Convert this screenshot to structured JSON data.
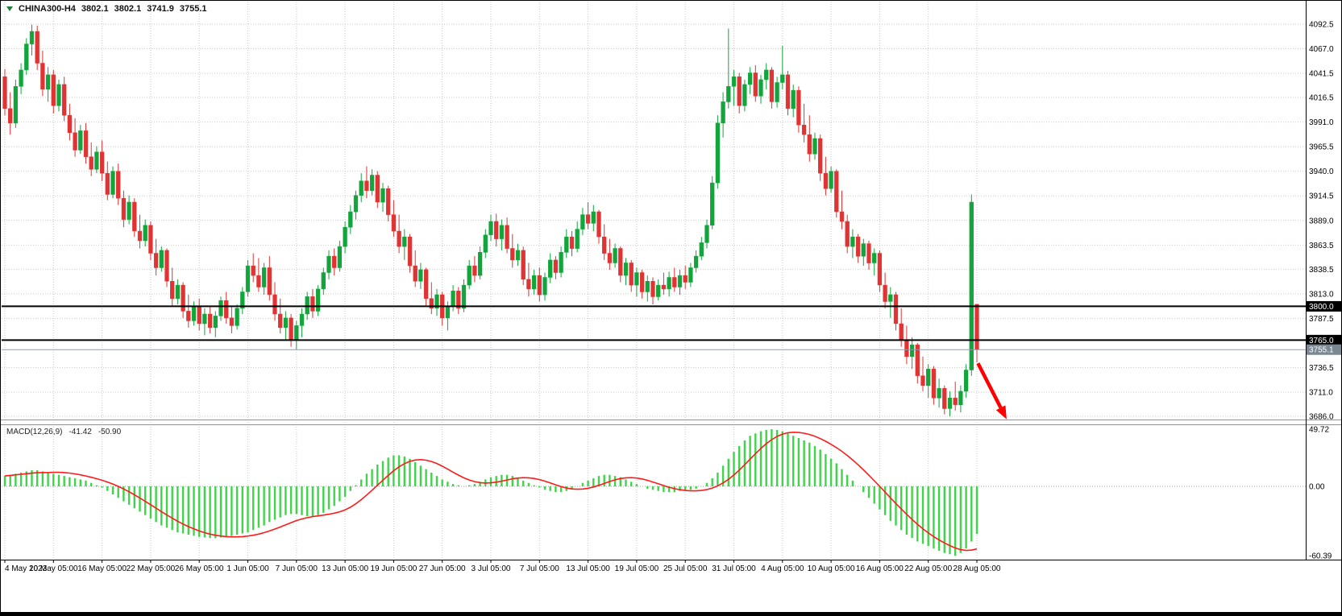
{
  "header": {
    "symbol": "CHINA300-H4",
    "open": "3802.1",
    "high": "3802.1",
    "low": "3741.9",
    "close": "3755.1"
  },
  "macd_label": {
    "name": "MACD(12,26,9)",
    "macd_value": "-41.42",
    "signal_value": "-50.90"
  },
  "colors": {
    "bull": "#13a53c",
    "bear": "#e03434",
    "macd_bar": "#3fd44a",
    "signal": "#ff1a1a",
    "grid": "#c9c9c9",
    "level_line": "#000000",
    "tag_bg": "#000000",
    "current_tag_bg": "#7c8794",
    "axis_text": "#000000",
    "arrow": "#ff0000"
  },
  "chart_data": {
    "type": "candlestick",
    "title": "CHINA300-H4",
    "timeframe": "H4",
    "label_every_n_candles": 9,
    "x_labels": [
      "4 May 2023",
      "10 May 05:00",
      "16 May 05:00",
      "22 May 05:00",
      "26 May 05:00",
      "1 Jun 05:00",
      "7 Jun 05:00",
      "13 Jun 05:00",
      "19 Jun 05:00",
      "27 Jun 05:00",
      "3 Jul 05:00",
      "7 Jul 05:00",
      "13 Jul 05:00",
      "19 Jul 05:00",
      "25 Jul 05:00",
      "31 Jul 05:00",
      "4 Aug 05:00",
      "10 Aug 05:00",
      "16 Aug 05:00",
      "22 Aug 05:00",
      "28 Aug 05:00"
    ],
    "price_axis": {
      "min": 3686.0,
      "max": 4092.5,
      "ticks": [
        4092.5,
        4067.0,
        4041.5,
        4016.5,
        3991.0,
        3965.5,
        3940.0,
        3914.5,
        3889.0,
        3863.5,
        3838.5,
        3813.0,
        3787.5,
        3736.5,
        3711.0,
        3686.0
      ],
      "levels": [
        {
          "value": 3800.0,
          "label": "3800.0"
        },
        {
          "value": 3765.0,
          "label": "3765.0"
        }
      ],
      "current": {
        "value": 3755.1,
        "label": "3755.1"
      }
    },
    "candles": [
      [
        4038,
        4046,
        3998,
        4005
      ],
      [
        4005,
        4022,
        3978,
        3990
      ],
      [
        3990,
        4035,
        3985,
        4028
      ],
      [
        4028,
        4052,
        4020,
        4045
      ],
      [
        4045,
        4078,
        4040,
        4072
      ],
      [
        4072,
        4092,
        4060,
        4085
      ],
      [
        4085,
        4091,
        4045,
        4052
      ],
      [
        4052,
        4065,
        4018,
        4025
      ],
      [
        4025,
        4048,
        4012,
        4040
      ],
      [
        4040,
        4045,
        4000,
        4008
      ],
      [
        4008,
        4035,
        4002,
        4030
      ],
      [
        4030,
        4038,
        3992,
        3998
      ],
      [
        3998,
        4010,
        3972,
        3980
      ],
      [
        3980,
        3995,
        3955,
        3962
      ],
      [
        3962,
        3988,
        3958,
        3982
      ],
      [
        3982,
        3990,
        3948,
        3955
      ],
      [
        3955,
        3970,
        3935,
        3942
      ],
      [
        3942,
        3966,
        3938,
        3960
      ],
      [
        3960,
        3972,
        3930,
        3938
      ],
      [
        3938,
        3950,
        3910,
        3916
      ],
      [
        3916,
        3945,
        3912,
        3940
      ],
      [
        3940,
        3948,
        3905,
        3912
      ],
      [
        3912,
        3920,
        3882,
        3890
      ],
      [
        3890,
        3915,
        3885,
        3908
      ],
      [
        3908,
        3912,
        3872,
        3878
      ],
      [
        3878,
        3895,
        3860,
        3868
      ],
      [
        3868,
        3890,
        3862,
        3884
      ],
      [
        3884,
        3888,
        3848,
        3855
      ],
      [
        3855,
        3870,
        3832,
        3840
      ],
      [
        3840,
        3862,
        3836,
        3858
      ],
      [
        3858,
        3860,
        3820,
        3826
      ],
      [
        3826,
        3840,
        3800,
        3808
      ],
      [
        3808,
        3828,
        3802,
        3822
      ],
      [
        3822,
        3825,
        3788,
        3795
      ],
      [
        3795,
        3812,
        3778,
        3785
      ],
      [
        3785,
        3805,
        3780,
        3800
      ],
      [
        3800,
        3808,
        3775,
        3782
      ],
      [
        3782,
        3798,
        3770,
        3792
      ],
      [
        3792,
        3800,
        3772,
        3778
      ],
      [
        3778,
        3795,
        3768,
        3790
      ],
      [
        3790,
        3810,
        3785,
        3806
      ],
      [
        3806,
        3815,
        3782,
        3788
      ],
      [
        3788,
        3800,
        3772,
        3780
      ],
      [
        3780,
        3802,
        3776,
        3798
      ],
      [
        3798,
        3820,
        3792,
        3815
      ],
      [
        3815,
        3848,
        3810,
        3842
      ],
      [
        3842,
        3855,
        3825,
        3832
      ],
      [
        3832,
        3850,
        3815,
        3820
      ],
      [
        3820,
        3845,
        3812,
        3840
      ],
      [
        3840,
        3852,
        3806,
        3812
      ],
      [
        3812,
        3825,
        3785,
        3792
      ],
      [
        3792,
        3808,
        3772,
        3778
      ],
      [
        3778,
        3795,
        3765,
        3788
      ],
      [
        3788,
        3792,
        3758,
        3765
      ],
      [
        3765,
        3785,
        3755,
        3780
      ],
      [
        3780,
        3798,
        3768,
        3792
      ],
      [
        3792,
        3815,
        3786,
        3810
      ],
      [
        3810,
        3818,
        3788,
        3795
      ],
      [
        3795,
        3822,
        3790,
        3818
      ],
      [
        3818,
        3840,
        3812,
        3835
      ],
      [
        3835,
        3858,
        3828,
        3852
      ],
      [
        3852,
        3860,
        3832,
        3840
      ],
      [
        3840,
        3868,
        3836,
        3862
      ],
      [
        3862,
        3888,
        3855,
        3882
      ],
      [
        3882,
        3905,
        3875,
        3898
      ],
      [
        3898,
        3920,
        3890,
        3915
      ],
      [
        3915,
        3938,
        3908,
        3930
      ],
      [
        3930,
        3945,
        3912,
        3920
      ],
      [
        3920,
        3942,
        3915,
        3936
      ],
      [
        3936,
        3940,
        3902,
        3908
      ],
      [
        3908,
        3928,
        3898,
        3922
      ],
      [
        3922,
        3925,
        3888,
        3895
      ],
      [
        3895,
        3910,
        3872,
        3878
      ],
      [
        3878,
        3895,
        3855,
        3862
      ],
      [
        3862,
        3880,
        3848,
        3872
      ],
      [
        3872,
        3875,
        3835,
        3842
      ],
      [
        3842,
        3858,
        3820,
        3826
      ],
      [
        3826,
        3845,
        3818,
        3838
      ],
      [
        3838,
        3840,
        3800,
        3808
      ],
      [
        3808,
        3825,
        3792,
        3798
      ],
      [
        3798,
        3818,
        3790,
        3812
      ],
      [
        3812,
        3815,
        3780,
        3788
      ],
      [
        3788,
        3805,
        3775,
        3800
      ],
      [
        3800,
        3822,
        3795,
        3816
      ],
      [
        3816,
        3820,
        3792,
        3798
      ],
      [
        3798,
        3828,
        3794,
        3822
      ],
      [
        3822,
        3848,
        3818,
        3842
      ],
      [
        3842,
        3852,
        3825,
        3832
      ],
      [
        3832,
        3862,
        3828,
        3856
      ],
      [
        3856,
        3880,
        3850,
        3874
      ],
      [
        3874,
        3895,
        3868,
        3888
      ],
      [
        3888,
        3896,
        3862,
        3870
      ],
      [
        3870,
        3890,
        3858,
        3884
      ],
      [
        3884,
        3892,
        3855,
        3860
      ],
      [
        3860,
        3875,
        3840,
        3848
      ],
      [
        3848,
        3865,
        3842,
        3858
      ],
      [
        3858,
        3862,
        3822,
        3828
      ],
      [
        3828,
        3845,
        3810,
        3818
      ],
      [
        3818,
        3838,
        3812,
        3832
      ],
      [
        3832,
        3840,
        3805,
        3812
      ],
      [
        3812,
        3835,
        3806,
        3830
      ],
      [
        3830,
        3855,
        3824,
        3848
      ],
      [
        3848,
        3852,
        3828,
        3835
      ],
      [
        3835,
        3862,
        3830,
        3856
      ],
      [
        3856,
        3880,
        3850,
        3872
      ],
      [
        3872,
        3878,
        3852,
        3860
      ],
      [
        3860,
        3888,
        3856,
        3880
      ],
      [
        3880,
        3902,
        3874,
        3895
      ],
      [
        3895,
        3908,
        3880,
        3886
      ],
      [
        3886,
        3905,
        3878,
        3898
      ],
      [
        3898,
        3900,
        3865,
        3872
      ],
      [
        3872,
        3885,
        3848,
        3855
      ],
      [
        3855,
        3870,
        3838,
        3845
      ],
      [
        3845,
        3865,
        3840,
        3860
      ],
      [
        3860,
        3862,
        3825,
        3832
      ],
      [
        3832,
        3850,
        3822,
        3845
      ],
      [
        3845,
        3848,
        3815,
        3822
      ],
      [
        3822,
        3840,
        3810,
        3835
      ],
      [
        3835,
        3838,
        3808,
        3815
      ],
      [
        3815,
        3832,
        3805,
        3826
      ],
      [
        3826,
        3830,
        3802,
        3810
      ],
      [
        3810,
        3828,
        3806,
        3822
      ],
      [
        3822,
        3835,
        3812,
        3818
      ],
      [
        3818,
        3836,
        3810,
        3830
      ],
      [
        3830,
        3840,
        3815,
        3820
      ],
      [
        3820,
        3838,
        3812,
        3832
      ],
      [
        3832,
        3842,
        3818,
        3825
      ],
      [
        3825,
        3845,
        3820,
        3840
      ],
      [
        3840,
        3858,
        3835,
        3852
      ],
      [
        3852,
        3872,
        3848,
        3866
      ],
      [
        3866,
        3890,
        3860,
        3884
      ],
      [
        3884,
        3935,
        3880,
        3928
      ],
      [
        3928,
        3998,
        3922,
        3990
      ],
      [
        3990,
        4022,
        3975,
        4012
      ],
      [
        4012,
        4088,
        4005,
        4028
      ],
      [
        4028,
        4045,
        4008,
        4038
      ],
      [
        4038,
        4042,
        4000,
        4008
      ],
      [
        4008,
        4035,
        4002,
        4030
      ],
      [
        4030,
        4048,
        4020,
        4042
      ],
      [
        4042,
        4050,
        4012,
        4018
      ],
      [
        4018,
        4040,
        4010,
        4035
      ],
      [
        4035,
        4052,
        4025,
        4045
      ],
      [
        4045,
        4048,
        4005,
        4012
      ],
      [
        4012,
        4038,
        4006,
        4032
      ],
      [
        4032,
        4070,
        4025,
        4040
      ],
      [
        4040,
        4044,
        3998,
        4005
      ],
      [
        4005,
        4030,
        3996,
        4024
      ],
      [
        4024,
        4028,
        3980,
        3988
      ],
      [
        3988,
        4010,
        3970,
        3978
      ],
      [
        3978,
        3998,
        3950,
        3958
      ],
      [
        3958,
        3980,
        3952,
        3974
      ],
      [
        3974,
        3978,
        3930,
        3938
      ],
      [
        3938,
        3955,
        3915,
        3922
      ],
      [
        3922,
        3945,
        3918,
        3940
      ],
      [
        3940,
        3942,
        3892,
        3898
      ],
      [
        3898,
        3920,
        3880,
        3888
      ],
      [
        3888,
        3895,
        3855,
        3862
      ],
      [
        3862,
        3880,
        3850,
        3872
      ],
      [
        3872,
        3875,
        3845,
        3852
      ],
      [
        3852,
        3870,
        3842,
        3865
      ],
      [
        3865,
        3868,
        3838,
        3845
      ],
      [
        3845,
        3860,
        3832,
        3855
      ],
      [
        3855,
        3858,
        3815,
        3822
      ],
      [
        3822,
        3835,
        3798,
        3805
      ],
      [
        3805,
        3820,
        3788,
        3812
      ],
      [
        3812,
        3815,
        3775,
        3782
      ],
      [
        3782,
        3798,
        3758,
        3765
      ],
      [
        3765,
        3780,
        3740,
        3748
      ],
      [
        3748,
        3768,
        3735,
        3760
      ],
      [
        3760,
        3762,
        3720,
        3728
      ],
      [
        3728,
        3748,
        3712,
        3718
      ],
      [
        3718,
        3740,
        3705,
        3735
      ],
      [
        3735,
        3738,
        3698,
        3705
      ],
      [
        3705,
        3725,
        3695,
        3715
      ],
      [
        3715,
        3718,
        3688,
        3694
      ],
      [
        3694,
        3712,
        3686,
        3705
      ],
      [
        3705,
        3722,
        3692,
        3698
      ],
      [
        3698,
        3718,
        3690,
        3712
      ],
      [
        3712,
        3740,
        3705,
        3734
      ],
      [
        3734,
        3916,
        3728,
        3908
      ],
      [
        3802.1,
        3802.1,
        3741.9,
        3755.1
      ]
    ],
    "indicator": {
      "name": "MACD(12,26,9)",
      "type": "bar+line",
      "signal_period": 9,
      "last_macd": -41.42,
      "last_signal": -50.9,
      "axis": {
        "max": 49.72,
        "min": -60.39,
        "ticks": [
          {
            "value": 49.72,
            "label": "49.72"
          },
          {
            "value": 0,
            "label": "0.00"
          },
          {
            "value": -60.39,
            "label": "-60.39"
          }
        ]
      },
      "values": [
        9,
        10,
        11,
        12,
        13,
        14,
        14,
        13,
        12,
        11,
        10,
        9,
        8,
        7,
        6,
        5,
        3,
        1,
        -1,
        -4,
        -7,
        -10,
        -13,
        -16,
        -19,
        -22,
        -25,
        -28,
        -31,
        -34,
        -36,
        -38,
        -40,
        -41,
        -42,
        -43,
        -44,
        -44.5,
        -45,
        -45,
        -44.5,
        -44,
        -43,
        -42,
        -41,
        -40,
        -38,
        -36,
        -34,
        -31,
        -29,
        -27,
        -25,
        -24,
        -24,
        -25,
        -26,
        -26,
        -25,
        -23,
        -20,
        -17,
        -13,
        -9,
        -4,
        1,
        6,
        11,
        15,
        19,
        22,
        25,
        27,
        27,
        26,
        24,
        21,
        18,
        15,
        12,
        9,
        6,
        4,
        2,
        1,
        0,
        1,
        2,
        4,
        6,
        8,
        9,
        10,
        10,
        9,
        7,
        5,
        3,
        1,
        -1,
        -3,
        -4,
        -5,
        -5,
        -4,
        -2,
        0,
        3,
        5,
        7,
        9,
        10,
        10,
        9,
        8,
        6,
        4,
        2,
        0,
        -2,
        -3,
        -4,
        -5,
        -5,
        -5,
        -4,
        -4,
        -3,
        -2,
        0,
        3,
        7,
        12,
        18,
        24,
        30,
        35,
        40,
        44,
        46,
        48,
        49,
        49.72,
        49,
        48,
        46,
        44,
        42,
        40,
        38,
        35,
        32,
        28,
        24,
        20,
        15,
        10,
        5,
        0,
        -5,
        -10,
        -15,
        -20,
        -25,
        -30,
        -34,
        -38,
        -42,
        -45,
        -48,
        -50,
        -52,
        -54,
        -56,
        -58,
        -59,
        -60.39,
        -58,
        -54,
        -48,
        -41.42
      ]
    },
    "annotation_arrow": {
      "from": {
        "i": 180.2,
        "price": 3741
      },
      "to": {
        "i": 185.5,
        "price": 3683
      },
      "color": "#ff0000"
    }
  }
}
